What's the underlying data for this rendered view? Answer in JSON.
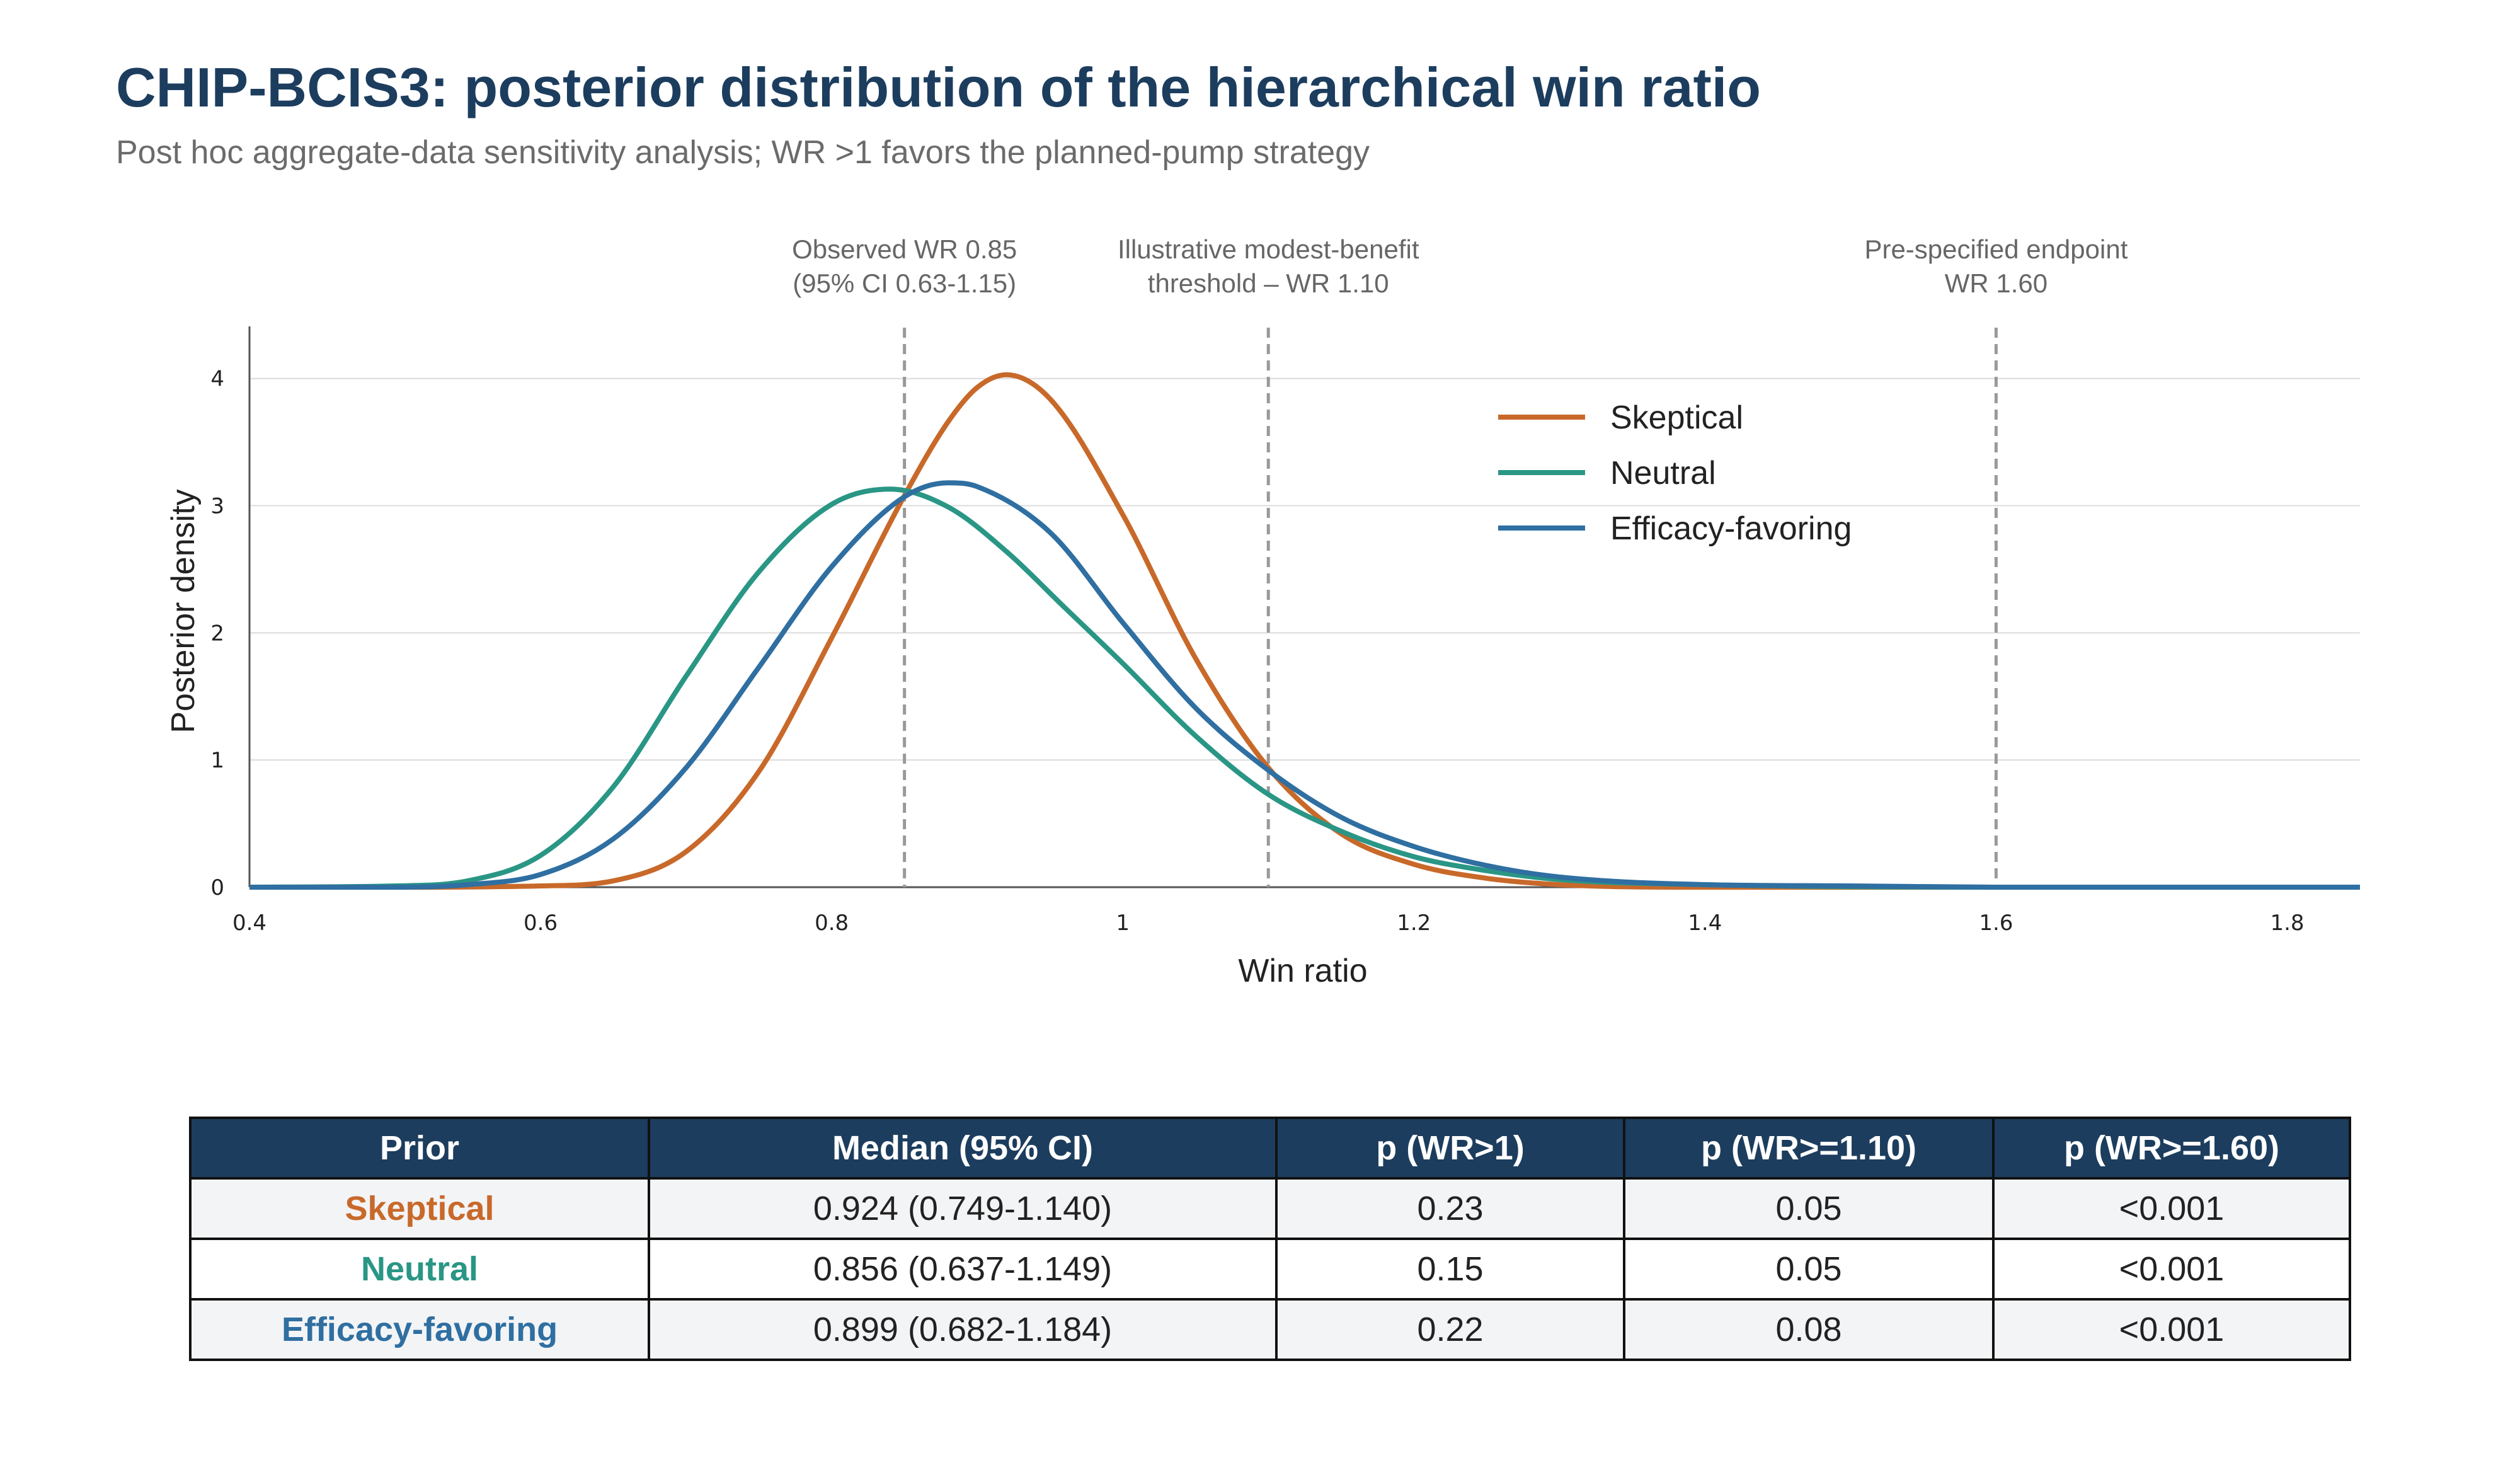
{
  "header": {
    "title": "CHIP-BCIS3: posterior distribution of the hierarchical win ratio",
    "subtitle": "Post hoc aggregate-data sensitivity analysis; WR >1 favors the planned-pump strategy"
  },
  "chart_data": {
    "type": "line",
    "xlabel": "Win ratio",
    "ylabel": "Posterior density",
    "xlim": [
      0.4,
      1.85
    ],
    "ylim": [
      0,
      4.4
    ],
    "x_ticks": [
      "0.4",
      "0.6",
      "0.8",
      "1",
      "1.2",
      "1.4",
      "1.6",
      "1.8"
    ],
    "y_ticks": [
      "0",
      "1",
      "2",
      "3",
      "4"
    ],
    "grid": "horizontal",
    "legend_position": "top-right",
    "series": [
      {
        "name": "Skeptical",
        "color": "#c8692a",
        "x": [
          0.4,
          0.5,
          0.6,
          0.65,
          0.7,
          0.75,
          0.8,
          0.85,
          0.88,
          0.9,
          0.92,
          0.95,
          1.0,
          1.05,
          1.1,
          1.15,
          1.2,
          1.25,
          1.3,
          1.4,
          1.6,
          1.85
        ],
        "y": [
          0,
          0,
          0.01,
          0.05,
          0.28,
          0.91,
          1.96,
          3.08,
          3.66,
          3.93,
          4.03,
          3.84,
          2.93,
          1.8,
          0.94,
          0.42,
          0.18,
          0.07,
          0.02,
          0,
          0,
          0
        ]
      },
      {
        "name": "Neutral",
        "color": "#2a9685",
        "x": [
          0.4,
          0.5,
          0.55,
          0.6,
          0.65,
          0.7,
          0.75,
          0.8,
          0.84,
          0.88,
          0.92,
          0.96,
          1.0,
          1.05,
          1.1,
          1.15,
          1.2,
          1.25,
          1.3,
          1.4,
          1.6,
          1.85
        ],
        "y": [
          0,
          0.01,
          0.05,
          0.25,
          0.79,
          1.66,
          2.48,
          3.01,
          3.13,
          2.99,
          2.64,
          2.2,
          1.76,
          1.19,
          0.73,
          0.44,
          0.24,
          0.13,
          0.06,
          0.02,
          0,
          0
        ]
      },
      {
        "name": "Efficacy-favoring",
        "color": "#2f6fa1",
        "x": [
          0.4,
          0.5,
          0.55,
          0.6,
          0.65,
          0.7,
          0.75,
          0.8,
          0.85,
          0.88,
          0.9,
          0.95,
          1.0,
          1.05,
          1.1,
          1.15,
          1.2,
          1.25,
          1.3,
          1.4,
          1.5,
          1.6,
          1.85
        ],
        "y": [
          0,
          0,
          0.02,
          0.1,
          0.38,
          0.94,
          1.73,
          2.52,
          3.07,
          3.18,
          3.15,
          2.79,
          2.08,
          1.41,
          0.92,
          0.55,
          0.32,
          0.17,
          0.08,
          0.02,
          0.01,
          0,
          0
        ]
      }
    ],
    "reference_lines": [
      {
        "x": 0.85,
        "label_lines": [
          "Observed WR 0.85",
          "(95% CI 0.63-1.15)"
        ]
      },
      {
        "x": 1.1,
        "label_lines": [
          "Illustrative modest-benefit",
          "threshold – WR 1.10"
        ]
      },
      {
        "x": 1.6,
        "label_lines": [
          "Pre-specified endpoint",
          "WR 1.60"
        ]
      }
    ]
  },
  "table": {
    "headers": [
      "Prior",
      "Median (95% CI)",
      "p (WR>1)",
      "p (WR>=1.10)",
      "p (WR>=1.60)"
    ],
    "rows": [
      {
        "prior": "Skeptical",
        "color": "#c8692a",
        "median": "0.924 (0.749-1.140)",
        "p1": "0.23",
        "p110": "0.05",
        "p160": "<0.001"
      },
      {
        "prior": "Neutral",
        "color": "#2a9685",
        "median": "0.856 (0.637-1.149)",
        "p1": "0.15",
        "p110": "0.05",
        "p160": "<0.001"
      },
      {
        "prior": "Efficacy-favoring",
        "color": "#2f6fa1",
        "median": "0.899 (0.682-1.184)",
        "p1": "0.22",
        "p110": "0.08",
        "p160": "<0.001"
      }
    ]
  }
}
